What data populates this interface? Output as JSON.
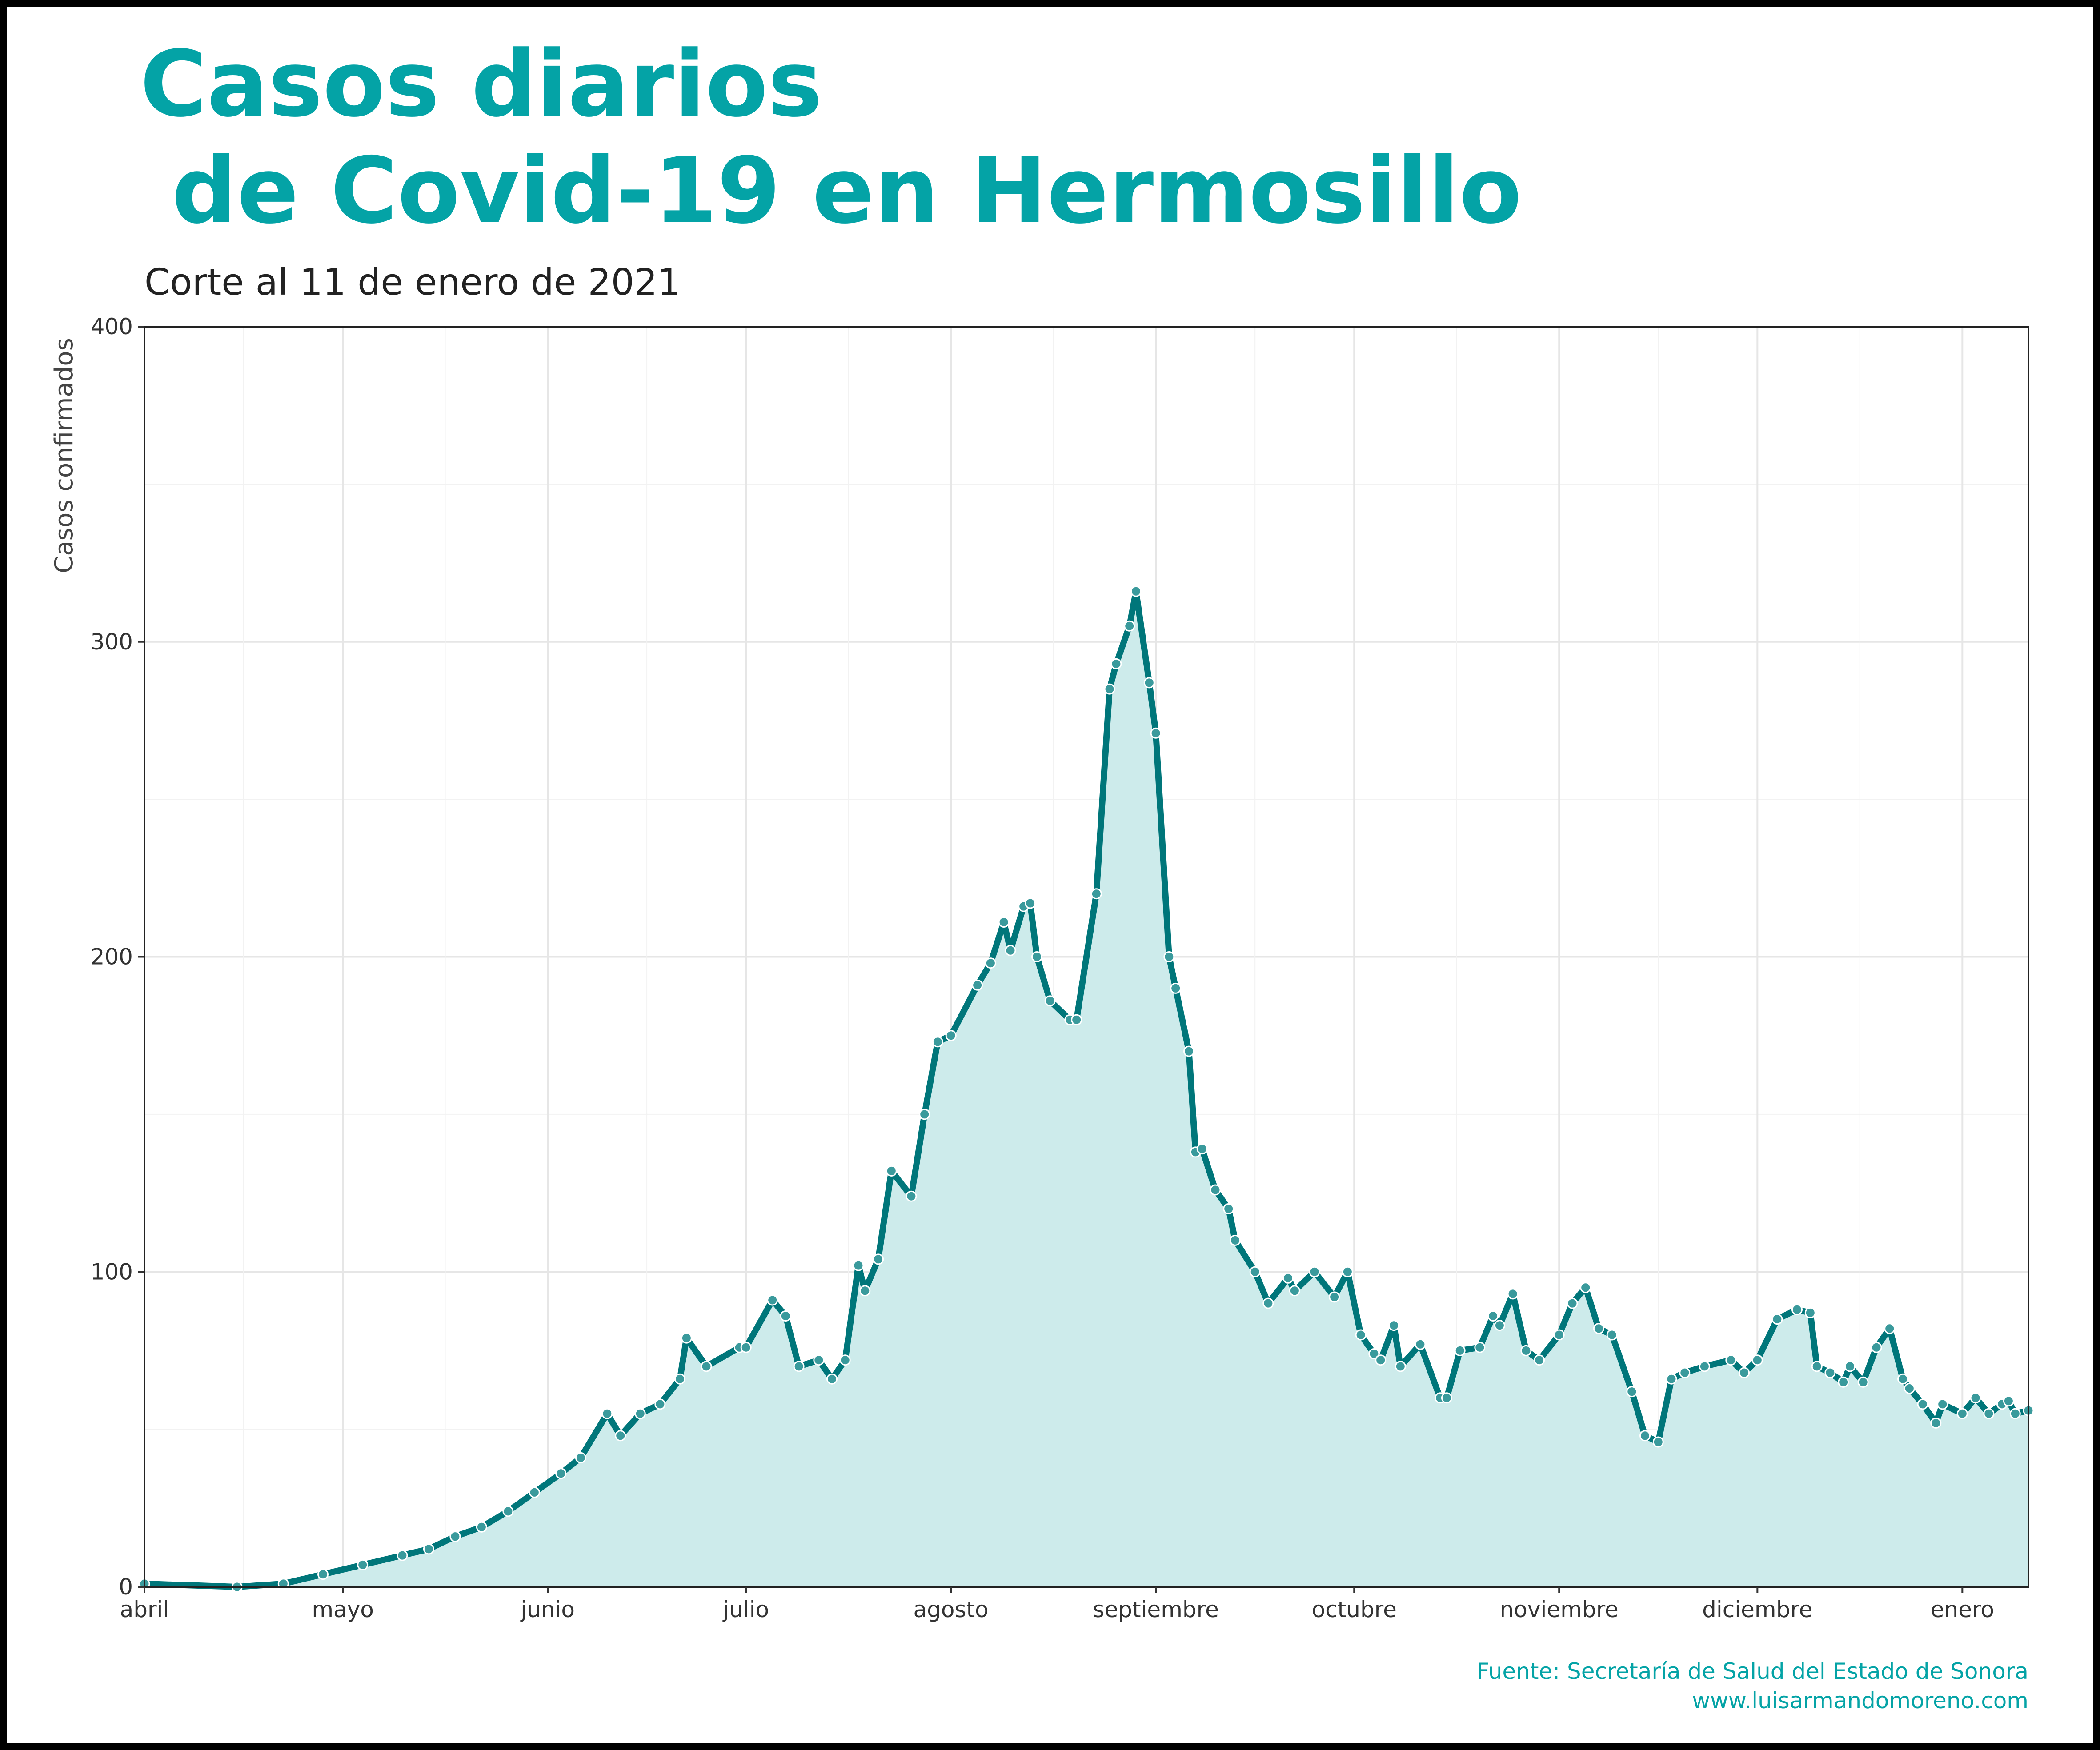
{
  "chart_data": {
    "type": "line",
    "title_line1": "Casos diarios",
    "title_line2": " de Covid-19 en Hermosillo",
    "subtitle": "Corte al 11 de enero de 2021",
    "xlabel": "",
    "ylabel": "Casos confirmados",
    "ylim": [
      0,
      400
    ],
    "y_ticks": [
      0,
      100,
      200,
      300,
      400
    ],
    "x_range": [
      "2020-04-01",
      "2021-01-11"
    ],
    "x_ticks": [
      {
        "date": "2020-04-01",
        "label": "abril"
      },
      {
        "date": "2020-05-01",
        "label": "mayo"
      },
      {
        "date": "2020-06-01",
        "label": "junio"
      },
      {
        "date": "2020-07-01",
        "label": "julio"
      },
      {
        "date": "2020-08-01",
        "label": "agosto"
      },
      {
        "date": "2020-09-01",
        "label": "septiembre"
      },
      {
        "date": "2020-10-01",
        "label": "octubre"
      },
      {
        "date": "2020-11-01",
        "label": "noviembre"
      },
      {
        "date": "2020-12-01",
        "label": "diciembre"
      },
      {
        "date": "2021-01-01",
        "label": "enero"
      }
    ],
    "grid": true,
    "colors": {
      "line": "#00767a",
      "fill": "#cdebeb",
      "points": "#3a9a9c",
      "title": "#04a3a6"
    },
    "series": [
      {
        "kind": "smoothed-line",
        "points": [
          [
            "2020-04-01",
            1
          ],
          [
            "2020-04-15",
            0
          ],
          [
            "2020-04-22",
            1
          ],
          [
            "2020-04-28",
            4
          ],
          [
            "2020-05-04",
            7
          ],
          [
            "2020-05-10",
            10
          ],
          [
            "2020-05-14",
            12
          ],
          [
            "2020-05-18",
            16
          ],
          [
            "2020-05-22",
            19
          ],
          [
            "2020-05-26",
            24
          ],
          [
            "2020-05-30",
            30
          ],
          [
            "2020-06-03",
            36
          ],
          [
            "2020-06-06",
            41
          ],
          [
            "2020-06-10",
            55
          ],
          [
            "2020-06-12",
            48
          ],
          [
            "2020-06-15",
            55
          ],
          [
            "2020-06-18",
            58
          ],
          [
            "2020-06-21",
            66
          ],
          [
            "2020-06-22",
            79
          ],
          [
            "2020-06-25",
            70
          ],
          [
            "2020-06-30",
            76
          ],
          [
            "2020-07-01",
            76
          ],
          [
            "2020-07-05",
            91
          ],
          [
            "2020-07-07",
            86
          ],
          [
            "2020-07-09",
            70
          ],
          [
            "2020-07-12",
            72
          ],
          [
            "2020-07-14",
            66
          ],
          [
            "2020-07-16",
            72
          ],
          [
            "2020-07-18",
            102
          ],
          [
            "2020-07-19",
            94
          ],
          [
            "2020-07-21",
            104
          ],
          [
            "2020-07-23",
            132
          ],
          [
            "2020-07-26",
            124
          ],
          [
            "2020-07-28",
            150
          ],
          [
            "2020-07-30",
            173
          ],
          [
            "2020-08-01",
            175
          ],
          [
            "2020-08-05",
            191
          ],
          [
            "2020-08-07",
            198
          ],
          [
            "2020-08-09",
            211
          ],
          [
            "2020-08-10",
            202
          ],
          [
            "2020-08-12",
            216
          ],
          [
            "2020-08-13",
            217
          ],
          [
            "2020-08-14",
            200
          ],
          [
            "2020-08-16",
            186
          ],
          [
            "2020-08-19",
            180
          ],
          [
            "2020-08-20",
            180
          ],
          [
            "2020-08-23",
            220
          ],
          [
            "2020-08-25",
            285
          ],
          [
            "2020-08-26",
            293
          ],
          [
            "2020-08-28",
            305
          ],
          [
            "2020-08-29",
            316
          ],
          [
            "2020-08-31",
            287
          ],
          [
            "2020-09-01",
            271
          ],
          [
            "2020-09-03",
            200
          ],
          [
            "2020-09-04",
            190
          ],
          [
            "2020-09-06",
            170
          ],
          [
            "2020-09-07",
            138
          ],
          [
            "2020-09-08",
            139
          ],
          [
            "2020-09-10",
            126
          ],
          [
            "2020-09-12",
            120
          ],
          [
            "2020-09-13",
            110
          ],
          [
            "2020-09-16",
            100
          ],
          [
            "2020-09-18",
            90
          ],
          [
            "2020-09-21",
            98
          ],
          [
            "2020-09-22",
            94
          ],
          [
            "2020-09-25",
            100
          ],
          [
            "2020-09-28",
            92
          ],
          [
            "2020-09-30",
            100
          ],
          [
            "2020-10-02",
            80
          ],
          [
            "2020-10-04",
            74
          ],
          [
            "2020-10-05",
            72
          ],
          [
            "2020-10-07",
            83
          ],
          [
            "2020-10-08",
            70
          ],
          [
            "2020-10-11",
            77
          ],
          [
            "2020-10-14",
            60
          ],
          [
            "2020-10-15",
            60
          ],
          [
            "2020-10-17",
            75
          ],
          [
            "2020-10-20",
            76
          ],
          [
            "2020-10-22",
            86
          ],
          [
            "2020-10-23",
            83
          ],
          [
            "2020-10-25",
            93
          ],
          [
            "2020-10-27",
            75
          ],
          [
            "2020-10-29",
            72
          ],
          [
            "2020-11-01",
            80
          ],
          [
            "2020-11-03",
            90
          ],
          [
            "2020-11-05",
            95
          ],
          [
            "2020-11-07",
            82
          ],
          [
            "2020-11-09",
            80
          ],
          [
            "2020-11-12",
            62
          ],
          [
            "2020-11-14",
            48
          ],
          [
            "2020-11-16",
            46
          ],
          [
            "2020-11-18",
            66
          ],
          [
            "2020-11-20",
            68
          ],
          [
            "2020-11-23",
            70
          ],
          [
            "2020-11-27",
            72
          ],
          [
            "2020-11-29",
            68
          ],
          [
            "2020-12-01",
            72
          ],
          [
            "2020-12-04",
            85
          ],
          [
            "2020-12-07",
            88
          ],
          [
            "2020-12-09",
            87
          ],
          [
            "2020-12-10",
            70
          ],
          [
            "2020-12-12",
            68
          ],
          [
            "2020-12-14",
            65
          ],
          [
            "2020-12-15",
            70
          ],
          [
            "2020-12-17",
            65
          ],
          [
            "2020-12-19",
            76
          ],
          [
            "2020-12-21",
            82
          ],
          [
            "2020-12-23",
            66
          ],
          [
            "2020-12-24",
            63
          ],
          [
            "2020-12-26",
            58
          ],
          [
            "2020-12-28",
            52
          ],
          [
            "2020-12-29",
            58
          ],
          [
            "2021-01-01",
            55
          ],
          [
            "2021-01-03",
            60
          ],
          [
            "2021-01-05",
            55
          ],
          [
            "2021-01-07",
            58
          ],
          [
            "2021-01-08",
            59
          ],
          [
            "2021-01-09",
            55
          ],
          [
            "2021-01-11",
            56
          ]
        ]
      }
    ]
  },
  "caption_source": "Fuente: Secretaría de Salud del Estado de Sonora",
  "caption_site": "www.luisarmandomoreno.com"
}
